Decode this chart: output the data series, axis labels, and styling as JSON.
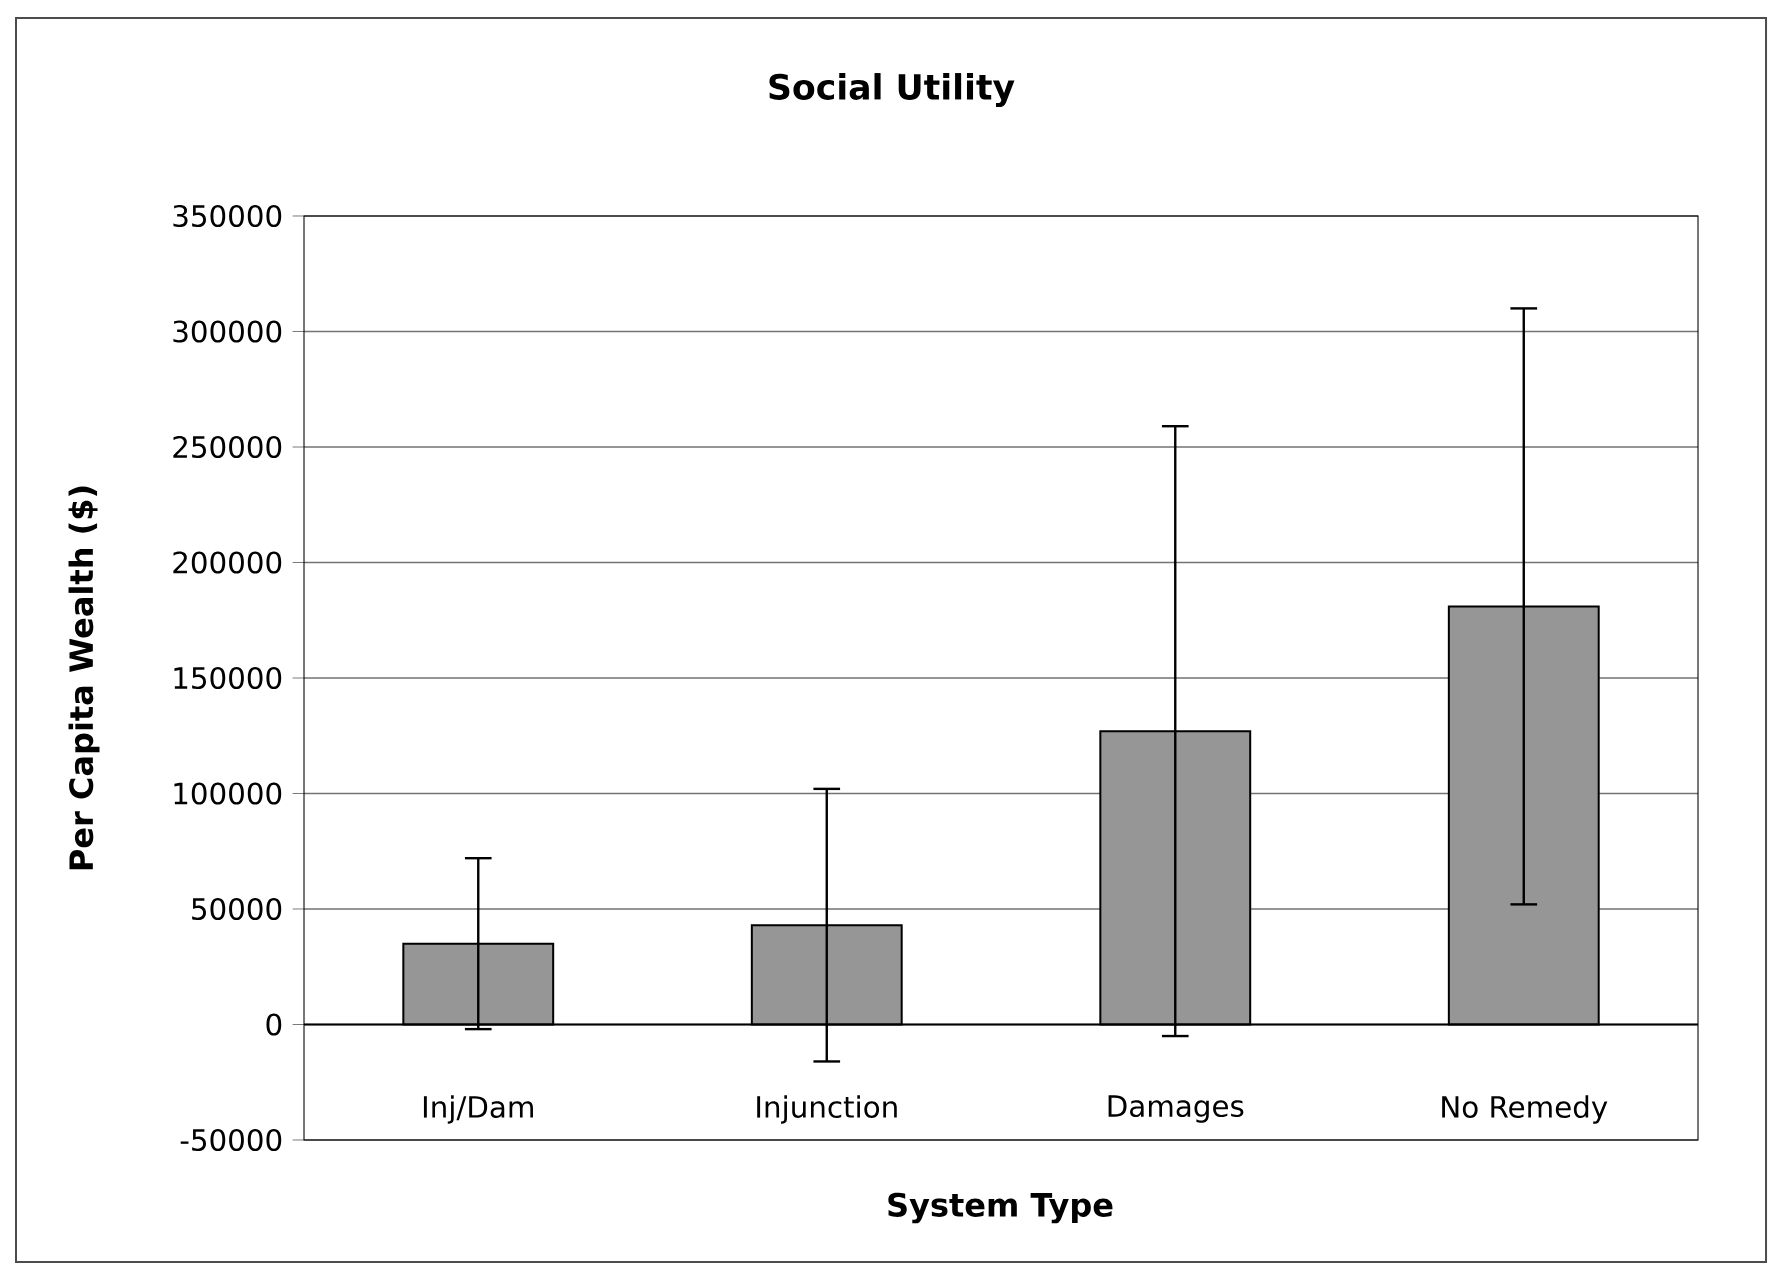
{
  "chart_data": {
    "type": "bar",
    "title": "Social Utility",
    "xlabel": "System Type",
    "ylabel": "Per Capita Wealth ($)",
    "categories": [
      "Inj/Dam",
      "Injunction",
      "Damages",
      "No Remedy"
    ],
    "values": [
      35000,
      43000,
      127000,
      181000
    ],
    "errors": [
      37000,
      59000,
      132000,
      129000
    ],
    "color": "#969696",
    "ylim": [
      -50000,
      350000
    ],
    "yticks": [
      -50000,
      0,
      50000,
      100000,
      150000,
      200000,
      250000,
      300000,
      350000
    ],
    "grid": "y"
  }
}
